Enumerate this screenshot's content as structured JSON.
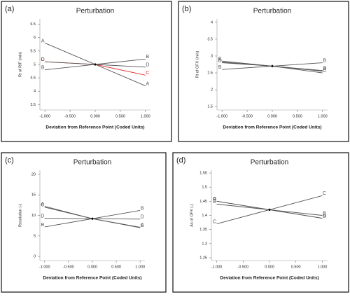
{
  "chart_data": [
    {
      "type": "line",
      "panel_label": "(a)",
      "title": "Perturbation",
      "xlabel": "Deviation from Reference Point (Coded Units)",
      "ylabel": "Rt of RIF (min)",
      "x": [
        -1,
        0,
        1
      ],
      "xlim": [
        -1.1,
        1.1
      ],
      "xticks": [
        {
          "value": -1,
          "label": "-1.000"
        },
        {
          "value": -0.5,
          "label": "-0.500"
        },
        {
          "value": 0,
          "label": "0.000"
        },
        {
          "value": 0.5,
          "label": "0.500"
        },
        {
          "value": 1,
          "label": "1.000"
        }
      ],
      "ylim": [
        3.3,
        6.7
      ],
      "yticks": [
        3.5,
        4,
        4.5,
        5,
        5.5,
        6,
        6.5
      ],
      "series": [
        {
          "name": "A",
          "color": "#555555",
          "values": [
            5.8,
            5.0,
            4.2
          ]
        },
        {
          "name": "B",
          "color": "#555555",
          "values": [
            4.8,
            5.0,
            5.2
          ]
        },
        {
          "name": "C",
          "color": "#e03030",
          "values": [
            5.1,
            5.0,
            4.6
          ]
        },
        {
          "name": "D",
          "color": "#555555",
          "values": [
            5.1,
            5.0,
            4.9
          ]
        }
      ]
    },
    {
      "type": "line",
      "panel_label": "(b)",
      "title": "Perturbation",
      "xlabel": "Deviation from Reference Point (Coded Units)",
      "ylabel": "Rt of OFX (min)",
      "x": [
        -1,
        0,
        1
      ],
      "xlim": [
        -1.1,
        1.1
      ],
      "xticks": [
        {
          "value": -1,
          "label": "-1.000"
        },
        {
          "value": -0.5,
          "label": "-0.500"
        },
        {
          "value": 0,
          "label": "0.000"
        },
        {
          "value": 0.5,
          "label": "0.500"
        },
        {
          "value": 1,
          "label": "1.000"
        }
      ],
      "ylim": [
        1.4,
        4.1
      ],
      "yticks": [
        1.5,
        2,
        2.5,
        3,
        3.5,
        4
      ],
      "series": [
        {
          "name": "A",
          "color": "#555555",
          "values": [
            2.82,
            2.7,
            2.55
          ]
        },
        {
          "name": "B",
          "color": "#555555",
          "values": [
            2.6,
            2.7,
            2.8
          ]
        },
        {
          "name": "C",
          "color": "#555555",
          "values": [
            2.85,
            2.7,
            2.5
          ]
        },
        {
          "name": "D",
          "color": "#555555",
          "values": [
            2.8,
            2.7,
            2.57
          ]
        }
      ]
    },
    {
      "type": "line",
      "panel_label": "(c)",
      "title": "Perturbation",
      "xlabel": "Deviation from Reference Point (Coded Units)",
      "ylabel": "Resolution (-)",
      "x": [
        -1,
        0,
        1
      ],
      "xlim": [
        -1.1,
        1.1
      ],
      "xticks": [
        {
          "value": -1,
          "label": "-1.000"
        },
        {
          "value": -0.5,
          "label": "-0.500"
        },
        {
          "value": 0,
          "label": "0.000"
        },
        {
          "value": 0.5,
          "label": "0.500"
        },
        {
          "value": 1,
          "label": "1.000"
        }
      ],
      "ylim": [
        -1,
        21
      ],
      "yticks": [
        0,
        5,
        10,
        15,
        20
      ],
      "series": [
        {
          "name": "A",
          "color": "#555555",
          "values": [
            12.2,
            9.2,
            7.1
          ]
        },
        {
          "name": "B",
          "color": "#555555",
          "values": [
            7.2,
            9.2,
            11.2
          ]
        },
        {
          "name": "C",
          "color": "#555555",
          "values": [
            12.0,
            9.2,
            7.0
          ]
        },
        {
          "name": "D",
          "color": "#555555",
          "values": [
            9.3,
            9.2,
            9.1
          ]
        }
      ]
    },
    {
      "type": "line",
      "panel_label": "(d)",
      "title": "Perturbation",
      "xlabel": "Deviation from Reference Point (Coded Units)",
      "ylabel": "As of OFX (-)",
      "x": [
        -1,
        0,
        1
      ],
      "xlim": [
        -1.1,
        1.1
      ],
      "xticks": [
        {
          "value": -1,
          "label": "-1.000"
        },
        {
          "value": -0.5,
          "label": "-0.500"
        },
        {
          "value": 0,
          "label": "0.000"
        },
        {
          "value": 0.5,
          "label": "0.500"
        },
        {
          "value": 1,
          "label": "1.000"
        }
      ],
      "ylim": [
        1.24,
        1.56
      ],
      "yticks": [
        1.25,
        1.3,
        1.35,
        1.4,
        1.45,
        1.5,
        1.55
      ],
      "series": [
        {
          "name": "A",
          "color": "#555555",
          "values": [
            1.45,
            1.42,
            1.39
          ]
        },
        {
          "name": "B",
          "color": "#555555",
          "values": [
            1.44,
            1.42,
            1.4
          ]
        },
        {
          "name": "C",
          "color": "#555555",
          "values": [
            1.37,
            1.42,
            1.47
          ]
        },
        {
          "name": "D",
          "color": "#555555",
          "values": [
            1.45,
            1.42,
            1.39
          ]
        }
      ]
    }
  ]
}
